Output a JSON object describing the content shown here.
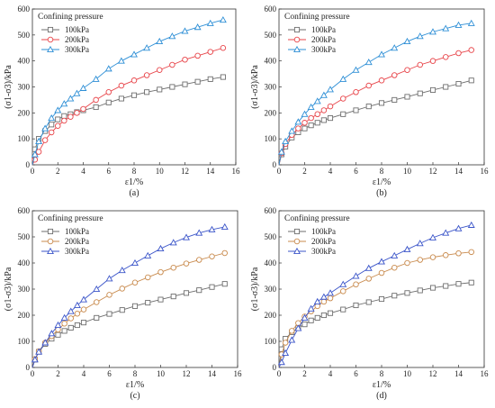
{
  "chart_data": [
    {
      "type": "line",
      "panel_label": "(a)",
      "xlabel": "ε1/%",
      "ylabel": "(σ1-σ3)/kPa",
      "xlim": [
        0,
        16
      ],
      "ylim": [
        0,
        600
      ],
      "xticks": [
        0,
        2,
        4,
        6,
        8,
        10,
        12,
        14,
        16
      ],
      "yticks": [
        0,
        100,
        200,
        300,
        400,
        500,
        600
      ],
      "legend_title": "Confining pressure",
      "legend_position": "top-left",
      "grid": false,
      "series": [
        {
          "name": "100kPa",
          "color": "#6e6e6e",
          "marker": "square",
          "x": [
            0,
            0.2,
            0.5,
            1,
            1.5,
            2,
            2.5,
            3,
            3.5,
            4,
            5,
            6,
            7,
            8,
            9,
            10,
            11,
            12,
            13,
            14,
            15
          ],
          "y": [
            0,
            60,
            100,
            130,
            155,
            175,
            188,
            195,
            203,
            210,
            222,
            240,
            255,
            268,
            280,
            290,
            300,
            310,
            320,
            330,
            338
          ]
        },
        {
          "name": "200kPa",
          "color": "#e8454a",
          "marker": "circle",
          "x": [
            0,
            0.2,
            0.5,
            1,
            1.5,
            2,
            2.5,
            3,
            3.5,
            4,
            5,
            6,
            7,
            8,
            9,
            10,
            11,
            12,
            13,
            14,
            15
          ],
          "y": [
            0,
            20,
            50,
            95,
            125,
            150,
            170,
            185,
            200,
            215,
            250,
            280,
            305,
            325,
            345,
            365,
            385,
            405,
            420,
            435,
            450
          ]
        },
        {
          "name": "300kPa",
          "color": "#2e8fd6",
          "marker": "triangle",
          "x": [
            0,
            0.2,
            0.5,
            1,
            1.5,
            2,
            2.5,
            3,
            3.5,
            4,
            5,
            6,
            7,
            8,
            9,
            10,
            11,
            12,
            13,
            14,
            15
          ],
          "y": [
            0,
            40,
            90,
            140,
            180,
            210,
            235,
            255,
            275,
            295,
            330,
            370,
            400,
            425,
            450,
            475,
            495,
            515,
            530,
            545,
            558
          ]
        }
      ]
    },
    {
      "type": "line",
      "panel_label": "(b)",
      "xlabel": "ε1/%",
      "ylabel": "(σ1-σ3)/kPa",
      "xlim": [
        0,
        16
      ],
      "ylim": [
        0,
        600
      ],
      "xticks": [
        0,
        2,
        4,
        6,
        8,
        10,
        12,
        14,
        16
      ],
      "yticks": [
        0,
        100,
        200,
        300,
        400,
        500,
        600
      ],
      "legend_title": "Confining pressure",
      "legend_position": "top-left",
      "grid": false,
      "series": [
        {
          "name": "100kPa",
          "color": "#6e6e6e",
          "marker": "square",
          "x": [
            0,
            0.2,
            0.5,
            1,
            1.5,
            2,
            2.5,
            3,
            3.5,
            4,
            5,
            6,
            7,
            8,
            9,
            10,
            11,
            12,
            13,
            14,
            15
          ],
          "y": [
            0,
            40,
            70,
            105,
            125,
            140,
            152,
            162,
            172,
            180,
            195,
            210,
            225,
            238,
            250,
            262,
            275,
            288,
            300,
            312,
            325
          ]
        },
        {
          "name": "200kPa",
          "color": "#e8454a",
          "marker": "circle",
          "x": [
            0,
            0.2,
            0.5,
            1,
            1.5,
            2,
            2.5,
            3,
            3.5,
            4,
            5,
            6,
            7,
            8,
            9,
            10,
            11,
            12,
            13,
            14,
            15
          ],
          "y": [
            0,
            45,
            80,
            115,
            140,
            162,
            180,
            195,
            210,
            225,
            255,
            280,
            305,
            325,
            345,
            365,
            385,
            400,
            415,
            430,
            442
          ]
        },
        {
          "name": "300kPa",
          "color": "#2e8fd6",
          "marker": "triangle",
          "x": [
            0,
            0.2,
            0.5,
            1,
            1.5,
            2,
            2.5,
            3,
            3.5,
            4,
            5,
            6,
            7,
            8,
            9,
            10,
            11,
            12,
            13,
            14,
            15
          ],
          "y": [
            0,
            50,
            90,
            130,
            165,
            195,
            222,
            245,
            268,
            290,
            330,
            365,
            395,
            425,
            450,
            475,
            495,
            512,
            525,
            538,
            545
          ]
        }
      ]
    },
    {
      "type": "line",
      "panel_label": "(c)",
      "xlabel": "ε1/%",
      "ylabel": "(σ1-σ3)/kPa",
      "xlim": [
        0,
        16
      ],
      "ylim": [
        0,
        600
      ],
      "xticks": [
        0,
        2,
        4,
        6,
        8,
        10,
        12,
        14,
        16
      ],
      "yticks": [
        0,
        100,
        200,
        300,
        400,
        500,
        600
      ],
      "legend_title": "Confining pressure",
      "legend_position": "top-left",
      "grid": false,
      "series": [
        {
          "name": "100kPa",
          "color": "#6e6e6e",
          "marker": "square",
          "x": [
            0,
            0.2,
            0.5,
            1,
            1.5,
            2,
            2.5,
            3,
            3.5,
            4,
            5,
            6,
            7,
            8,
            9,
            10,
            11,
            12,
            13,
            14,
            15
          ],
          "y": [
            0,
            30,
            60,
            90,
            110,
            125,
            140,
            152,
            162,
            172,
            190,
            205,
            220,
            235,
            248,
            260,
            272,
            285,
            296,
            308,
            320
          ]
        },
        {
          "name": "200kPa",
          "color": "#c98b4e",
          "marker": "circle",
          "x": [
            0,
            0.2,
            0.5,
            1,
            1.5,
            2,
            2.5,
            3,
            3.5,
            4,
            5,
            6,
            7,
            8,
            9,
            10,
            11,
            12,
            13,
            14,
            15
          ],
          "y": [
            0,
            32,
            62,
            95,
            120,
            145,
            168,
            188,
            206,
            222,
            250,
            278,
            302,
            325,
            345,
            365,
            382,
            398,
            412,
            425,
            438
          ]
        },
        {
          "name": "300kPa",
          "color": "#3b55c9",
          "marker": "triangle",
          "x": [
            0,
            0.2,
            0.5,
            1,
            1.5,
            2,
            2.5,
            3,
            3.5,
            4,
            5,
            6,
            7,
            8,
            9,
            10,
            11,
            12,
            13,
            14,
            15
          ],
          "y": [
            0,
            30,
            60,
            95,
            130,
            162,
            190,
            215,
            238,
            260,
            300,
            340,
            372,
            400,
            428,
            455,
            478,
            498,
            515,
            528,
            538
          ]
        }
      ]
    },
    {
      "type": "line",
      "panel_label": "(d)",
      "xlabel": "ε1/%",
      "ylabel": "(σ1-σ3)/kPa",
      "xlim": [
        0,
        16
      ],
      "ylim": [
        0,
        600
      ],
      "xticks": [
        0,
        2,
        4,
        6,
        8,
        10,
        12,
        14,
        16
      ],
      "yticks": [
        0,
        100,
        200,
        300,
        400,
        500,
        600
      ],
      "legend_title": "Confining pressure",
      "legend_position": "top-left",
      "grid": false,
      "series": [
        {
          "name": "100kPa",
          "color": "#6e6e6e",
          "marker": "square",
          "x": [
            0,
            0.2,
            0.5,
            1,
            1.5,
            2,
            2.5,
            3,
            3.5,
            4,
            5,
            6,
            7,
            8,
            9,
            10,
            11,
            12,
            13,
            14,
            15
          ],
          "y": [
            0,
            70,
            110,
            135,
            152,
            165,
            180,
            190,
            200,
            208,
            222,
            238,
            250,
            262,
            275,
            285,
            295,
            305,
            312,
            320,
            325
          ]
        },
        {
          "name": "200kPa",
          "color": "#c98b4e",
          "marker": "circle",
          "x": [
            0,
            0.2,
            0.5,
            1,
            1.5,
            2,
            2.5,
            3,
            3.5,
            4,
            5,
            6,
            7,
            8,
            9,
            10,
            11,
            12,
            13,
            14,
            15
          ],
          "y": [
            0,
            50,
            95,
            140,
            170,
            195,
            215,
            235,
            252,
            265,
            292,
            318,
            340,
            362,
            382,
            400,
            412,
            422,
            430,
            437,
            442
          ]
        },
        {
          "name": "300kPa",
          "color": "#3b55c9",
          "marker": "triangle",
          "x": [
            0,
            0.2,
            0.5,
            1,
            1.5,
            2,
            2.5,
            3,
            3.5,
            4,
            5,
            6,
            7,
            8,
            9,
            10,
            11,
            12,
            13,
            14,
            15
          ],
          "y": [
            0,
            20,
            55,
            105,
            150,
            190,
            225,
            252,
            270,
            285,
            318,
            350,
            380,
            405,
            428,
            452,
            475,
            497,
            515,
            532,
            545
          ]
        }
      ]
    }
  ]
}
